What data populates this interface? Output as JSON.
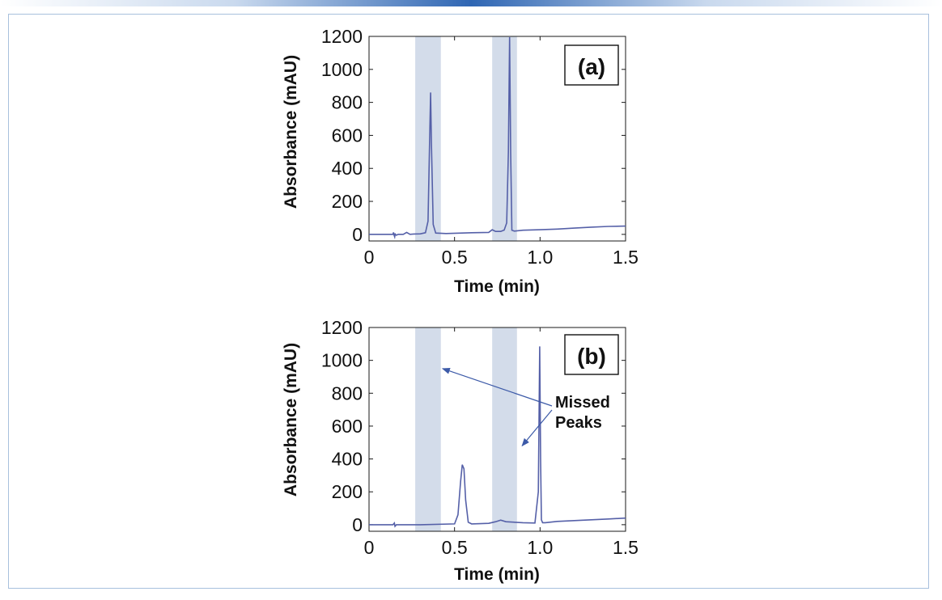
{
  "colors": {
    "shade": "#d3dcea",
    "line": "#5560a8",
    "arrow": "#3c5aa8",
    "frame": "#a8c0dd"
  },
  "chart_data": [
    {
      "type": "line",
      "panel_label": "(a)",
      "xlabel": "Time (min)",
      "ylabel": "Absorbance (mAU)",
      "xlim": [
        0,
        1.5
      ],
      "ylim": [
        -40,
        1200
      ],
      "x_ticks": [
        "0",
        "0.5",
        "1.0",
        "1.5"
      ],
      "y_ticks": [
        "0",
        "200",
        "400",
        "600",
        "800",
        "1000",
        "1200"
      ],
      "shaded_regions": [
        [
          0.27,
          0.42
        ],
        [
          0.72,
          0.865
        ]
      ],
      "series": [
        {
          "x": [
            0,
            0.12,
            0.14,
            0.143,
            0.146,
            0.15,
            0.153,
            0.16,
            0.17,
            0.2,
            0.22,
            0.24,
            0.26,
            0.3,
            0.33,
            0.345,
            0.355,
            0.36,
            0.365,
            0.375,
            0.39,
            0.45,
            0.6,
            0.7,
            0.72,
            0.74,
            0.77,
            0.79,
            0.805,
            0.815,
            0.822,
            0.828,
            0.835,
            0.85,
            0.9,
            1.0,
            1.1,
            1.2,
            1.3,
            1.4,
            1.5
          ],
          "y": [
            0,
            0,
            0,
            12,
            -4,
            -15,
            2,
            -5,
            0,
            0,
            12,
            0,
            2,
            3,
            10,
            80,
            600,
            860,
            550,
            60,
            8,
            5,
            10,
            12,
            28,
            18,
            18,
            26,
            70,
            500,
            1195,
            500,
            25,
            20,
            25,
            28,
            32,
            38,
            44,
            48,
            50
          ]
        }
      ]
    },
    {
      "type": "line",
      "panel_label": "(b)",
      "xlabel": "Time (min)",
      "ylabel": "Absorbance (mAU)",
      "xlim": [
        0,
        1.5
      ],
      "ylim": [
        -40,
        1200
      ],
      "x_ticks": [
        "0",
        "0.5",
        "1.0",
        "1.5"
      ],
      "y_ticks": [
        "0",
        "200",
        "400",
        "600",
        "800",
        "1000",
        "1200"
      ],
      "shaded_regions": [
        [
          0.27,
          0.42
        ],
        [
          0.72,
          0.865
        ]
      ],
      "annotation": {
        "text_lines": [
          "Missed",
          "Peaks"
        ],
        "targets": [
          [
            0.43,
            950
          ],
          [
            0.895,
            480
          ]
        ]
      },
      "series": [
        {
          "x": [
            0,
            0.14,
            0.148,
            0.152,
            0.156,
            0.16,
            0.17,
            0.3,
            0.5,
            0.52,
            0.535,
            0.545,
            0.555,
            0.565,
            0.58,
            0.6,
            0.7,
            0.74,
            0.77,
            0.8,
            0.9,
            0.97,
            0.99,
            0.998,
            1.003,
            1.008,
            1.015,
            1.03,
            1.1,
            1.2,
            1.3,
            1.4,
            1.5
          ],
          "y": [
            0,
            0,
            10,
            -10,
            -5,
            0,
            0,
            0,
            5,
            60,
            260,
            365,
            340,
            150,
            15,
            5,
            8,
            18,
            28,
            18,
            12,
            10,
            200,
            1085,
            400,
            30,
            12,
            12,
            20,
            25,
            30,
            35,
            40
          ]
        }
      ]
    }
  ]
}
